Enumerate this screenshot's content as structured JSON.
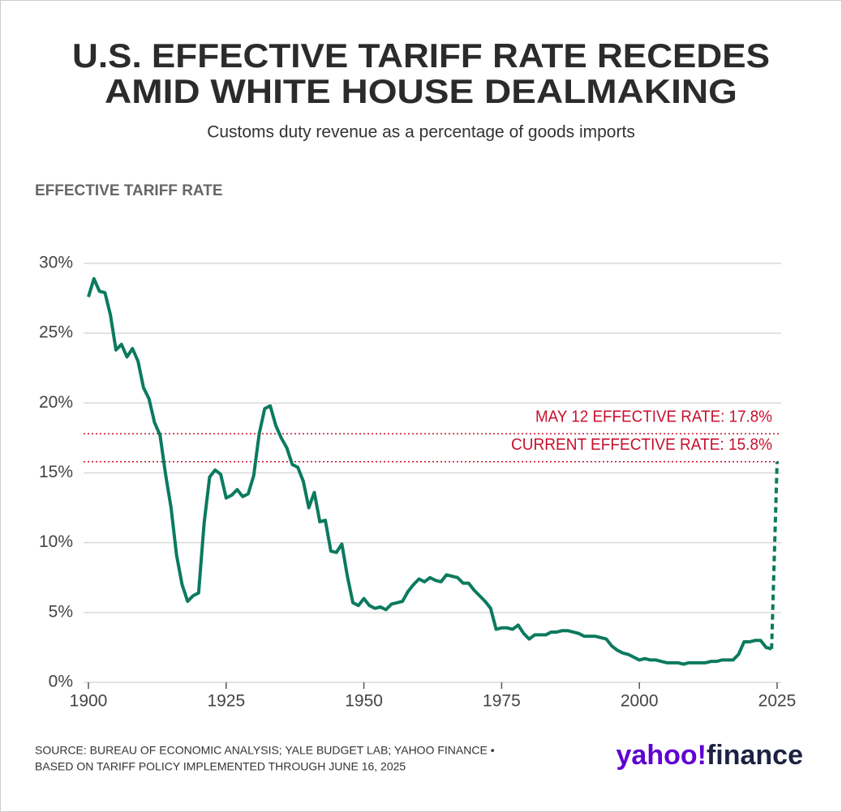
{
  "chart_data": {
    "type": "line",
    "title": [
      "U.S. EFFECTIVE TARIFF RATE RECEDES",
      "AMID WHITE HOUSE DEALMAKING"
    ],
    "subtitle": "Customs duty revenue as a percentage of goods imports",
    "y_label": "EFFECTIVE TARIFF RATE",
    "x": [
      1900,
      1901,
      1902,
      1903,
      1904,
      1905,
      1906,
      1907,
      1908,
      1909,
      1910,
      1911,
      1912,
      1913,
      1914,
      1915,
      1916,
      1917,
      1918,
      1919,
      1920,
      1921,
      1922,
      1923,
      1924,
      1925,
      1926,
      1927,
      1928,
      1929,
      1930,
      1931,
      1932,
      1933,
      1934,
      1935,
      1936,
      1937,
      1938,
      1939,
      1940,
      1941,
      1942,
      1943,
      1944,
      1945,
      1946,
      1947,
      1948,
      1949,
      1950,
      1951,
      1952,
      1953,
      1954,
      1955,
      1956,
      1957,
      1958,
      1959,
      1960,
      1961,
      1962,
      1963,
      1964,
      1965,
      1966,
      1967,
      1968,
      1969,
      1970,
      1971,
      1972,
      1973,
      1974,
      1975,
      1976,
      1977,
      1978,
      1979,
      1980,
      1981,
      1982,
      1983,
      1984,
      1985,
      1986,
      1987,
      1988,
      1989,
      1990,
      1991,
      1992,
      1993,
      1994,
      1995,
      1996,
      1997,
      1998,
      1999,
      2000,
      2001,
      2002,
      2003,
      2004,
      2005,
      2006,
      2007,
      2008,
      2009,
      2010,
      2011,
      2012,
      2013,
      2014,
      2015,
      2016,
      2017,
      2018,
      2019,
      2020,
      2021,
      2022,
      2023,
      2024,
      2025
    ],
    "series": [
      {
        "color": "#0b7a5f",
        "dash": false,
        "values": [
          27.6,
          28.9,
          28.0,
          27.9,
          26.3,
          23.8,
          24.2,
          23.3,
          23.9,
          23.0,
          21.1,
          20.3,
          18.6,
          17.7,
          14.9,
          12.5,
          9.1,
          7.0,
          5.8,
          6.2,
          6.4,
          11.4,
          14.7,
          15.2,
          14.9,
          13.2,
          13.4,
          13.8,
          13.3,
          13.5,
          14.8,
          17.8,
          19.6,
          19.8,
          18.4,
          17.5,
          16.8,
          15.6,
          15.4,
          14.4,
          12.5,
          13.6,
          11.5,
          11.6,
          9.4,
          9.3,
          9.9,
          7.6,
          5.7,
          5.5,
          6.0,
          5.5,
          5.3,
          5.4,
          5.2,
          5.6,
          5.7,
          5.8,
          6.5,
          7.0,
          7.4,
          7.2,
          7.5,
          7.3,
          7.2,
          7.7,
          7.6,
          7.5,
          7.1,
          7.1,
          6.6,
          6.2,
          5.8,
          5.3,
          3.8,
          3.9,
          3.9,
          3.8,
          4.1,
          3.5,
          3.1,
          3.4,
          3.4,
          3.4,
          3.6,
          3.6,
          3.7,
          3.7,
          3.6,
          3.5,
          3.3,
          3.3,
          3.3,
          3.2,
          3.1,
          2.6,
          2.3,
          2.1,
          2.0,
          1.8,
          1.6,
          1.7,
          1.6,
          1.6,
          1.5,
          1.4,
          1.4,
          1.4,
          1.3,
          1.4,
          1.4,
          1.4,
          1.4,
          1.5,
          1.5,
          1.6,
          1.6,
          1.6,
          2.0,
          2.9,
          2.9,
          3.0,
          3.0,
          2.5,
          2.4,
          null
        ]
      },
      {
        "color": "#0b7a5f",
        "dash": true,
        "values": [
          null,
          null,
          null,
          null,
          null,
          null,
          null,
          null,
          null,
          null,
          null,
          null,
          null,
          null,
          null,
          null,
          null,
          null,
          null,
          null,
          null,
          null,
          null,
          null,
          null,
          null,
          null,
          null,
          null,
          null,
          null,
          null,
          null,
          null,
          null,
          null,
          null,
          null,
          null,
          null,
          null,
          null,
          null,
          null,
          null,
          null,
          null,
          null,
          null,
          null,
          null,
          null,
          null,
          null,
          null,
          null,
          null,
          null,
          null,
          null,
          null,
          null,
          null,
          null,
          null,
          null,
          null,
          null,
          null,
          null,
          null,
          null,
          null,
          null,
          null,
          null,
          null,
          null,
          null,
          null,
          null,
          null,
          null,
          null,
          null,
          null,
          null,
          null,
          null,
          null,
          null,
          null,
          null,
          null,
          null,
          null,
          null,
          null,
          null,
          null,
          null,
          null,
          null,
          null,
          null,
          null,
          null,
          null,
          null,
          null,
          null,
          null,
          null,
          null,
          null,
          null,
          null,
          null,
          null,
          null,
          null,
          null,
          null,
          null,
          2.4,
          15.8
        ]
      }
    ],
    "annotations": [
      {
        "label": "MAY 12 EFFECTIVE RATE: 17.8%",
        "value": 17.8,
        "color": "#c8102e"
      },
      {
        "label": "CURRENT EFFECTIVE RATE: 15.8%",
        "value": 15.8,
        "color": "#c8102e"
      }
    ],
    "xlim": [
      1900,
      2025
    ],
    "ylim": [
      0,
      30
    ],
    "xticks": [
      1900,
      1925,
      1950,
      1975,
      2000,
      2025
    ],
    "yticks": [
      {
        "value": 0,
        "label": "0%"
      },
      {
        "value": 5,
        "label": "5%"
      },
      {
        "value": 10,
        "label": "10%"
      },
      {
        "value": 15,
        "label": "15%"
      },
      {
        "value": 20,
        "label": "20%"
      },
      {
        "value": 25,
        "label": "25%"
      },
      {
        "value": 30,
        "label": "30%"
      }
    ],
    "grid": true,
    "source": [
      "SOURCE: BUREAU OF ECONOMIC ANALYSIS; YALE BUDGET LAB; YAHOO FINANCE •",
      "BASED ON TARIFF POLICY IMPLEMENTED THROUGH JUNE 16, 2025"
    ],
    "logo": {
      "primary": "yahoo!",
      "secondary": "finance"
    }
  }
}
